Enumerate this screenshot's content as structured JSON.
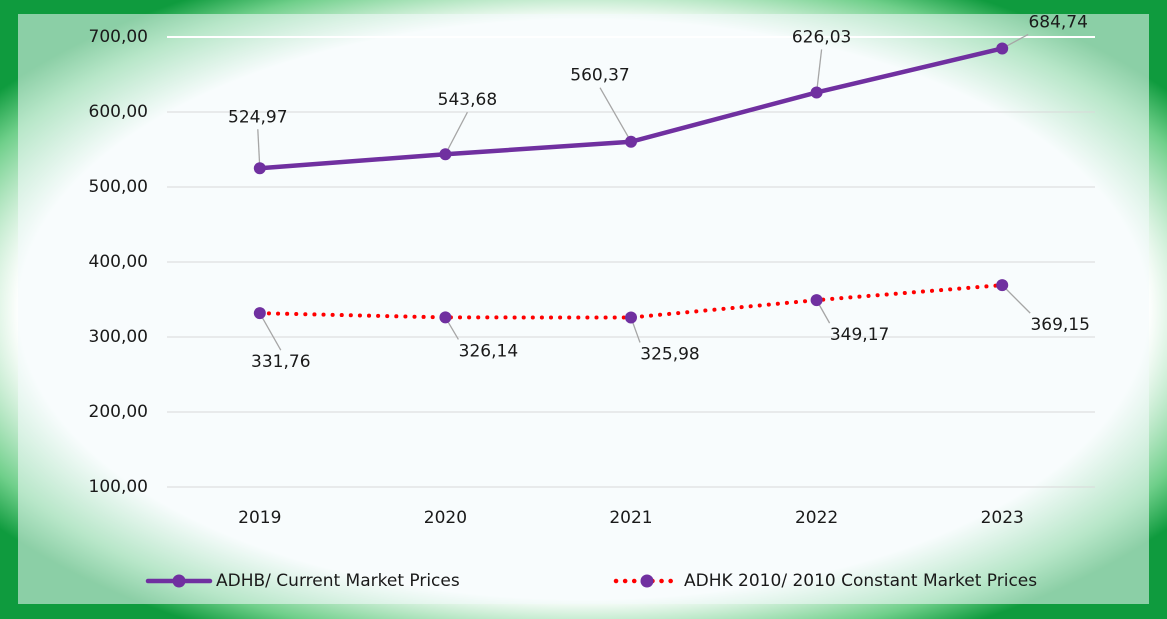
{
  "chart_data": {
    "type": "line",
    "categories": [
      "2019",
      "2020",
      "2021",
      "2022",
      "2023"
    ],
    "series": [
      {
        "name": "ADHB/ Current Market Prices",
        "color": "#7030a0",
        "marker_color": "#7030a0",
        "dash": "solid",
        "values": [
          524.97,
          543.68,
          560.37,
          626.03,
          684.74
        ],
        "value_labels": [
          "524,97",
          "543,68",
          "560,37",
          "626,03",
          "684,74"
        ]
      },
      {
        "name": "ADHK 2010/ 2010 Constant Market Prices",
        "color": "#ff0000",
        "marker_color": "#7030a0",
        "dash": "dotted",
        "values": [
          331.76,
          326.14,
          325.98,
          349.17,
          369.15
        ],
        "value_labels": [
          "331,76",
          "326,14",
          "325,98",
          "349,17",
          "369,15"
        ]
      }
    ],
    "ylim": [
      100,
      700
    ],
    "yticks": [
      {
        "value": 100,
        "label": "100,00"
      },
      {
        "value": 200,
        "label": "200,00"
      },
      {
        "value": 300,
        "label": "300,00"
      },
      {
        "value": 400,
        "label": "400,00"
      },
      {
        "value": 500,
        "label": "500,00"
      },
      {
        "value": 600,
        "label": "600,00"
      },
      {
        "value": 700,
        "label": "700,00"
      }
    ],
    "grid": true,
    "legend": "bottom"
  }
}
